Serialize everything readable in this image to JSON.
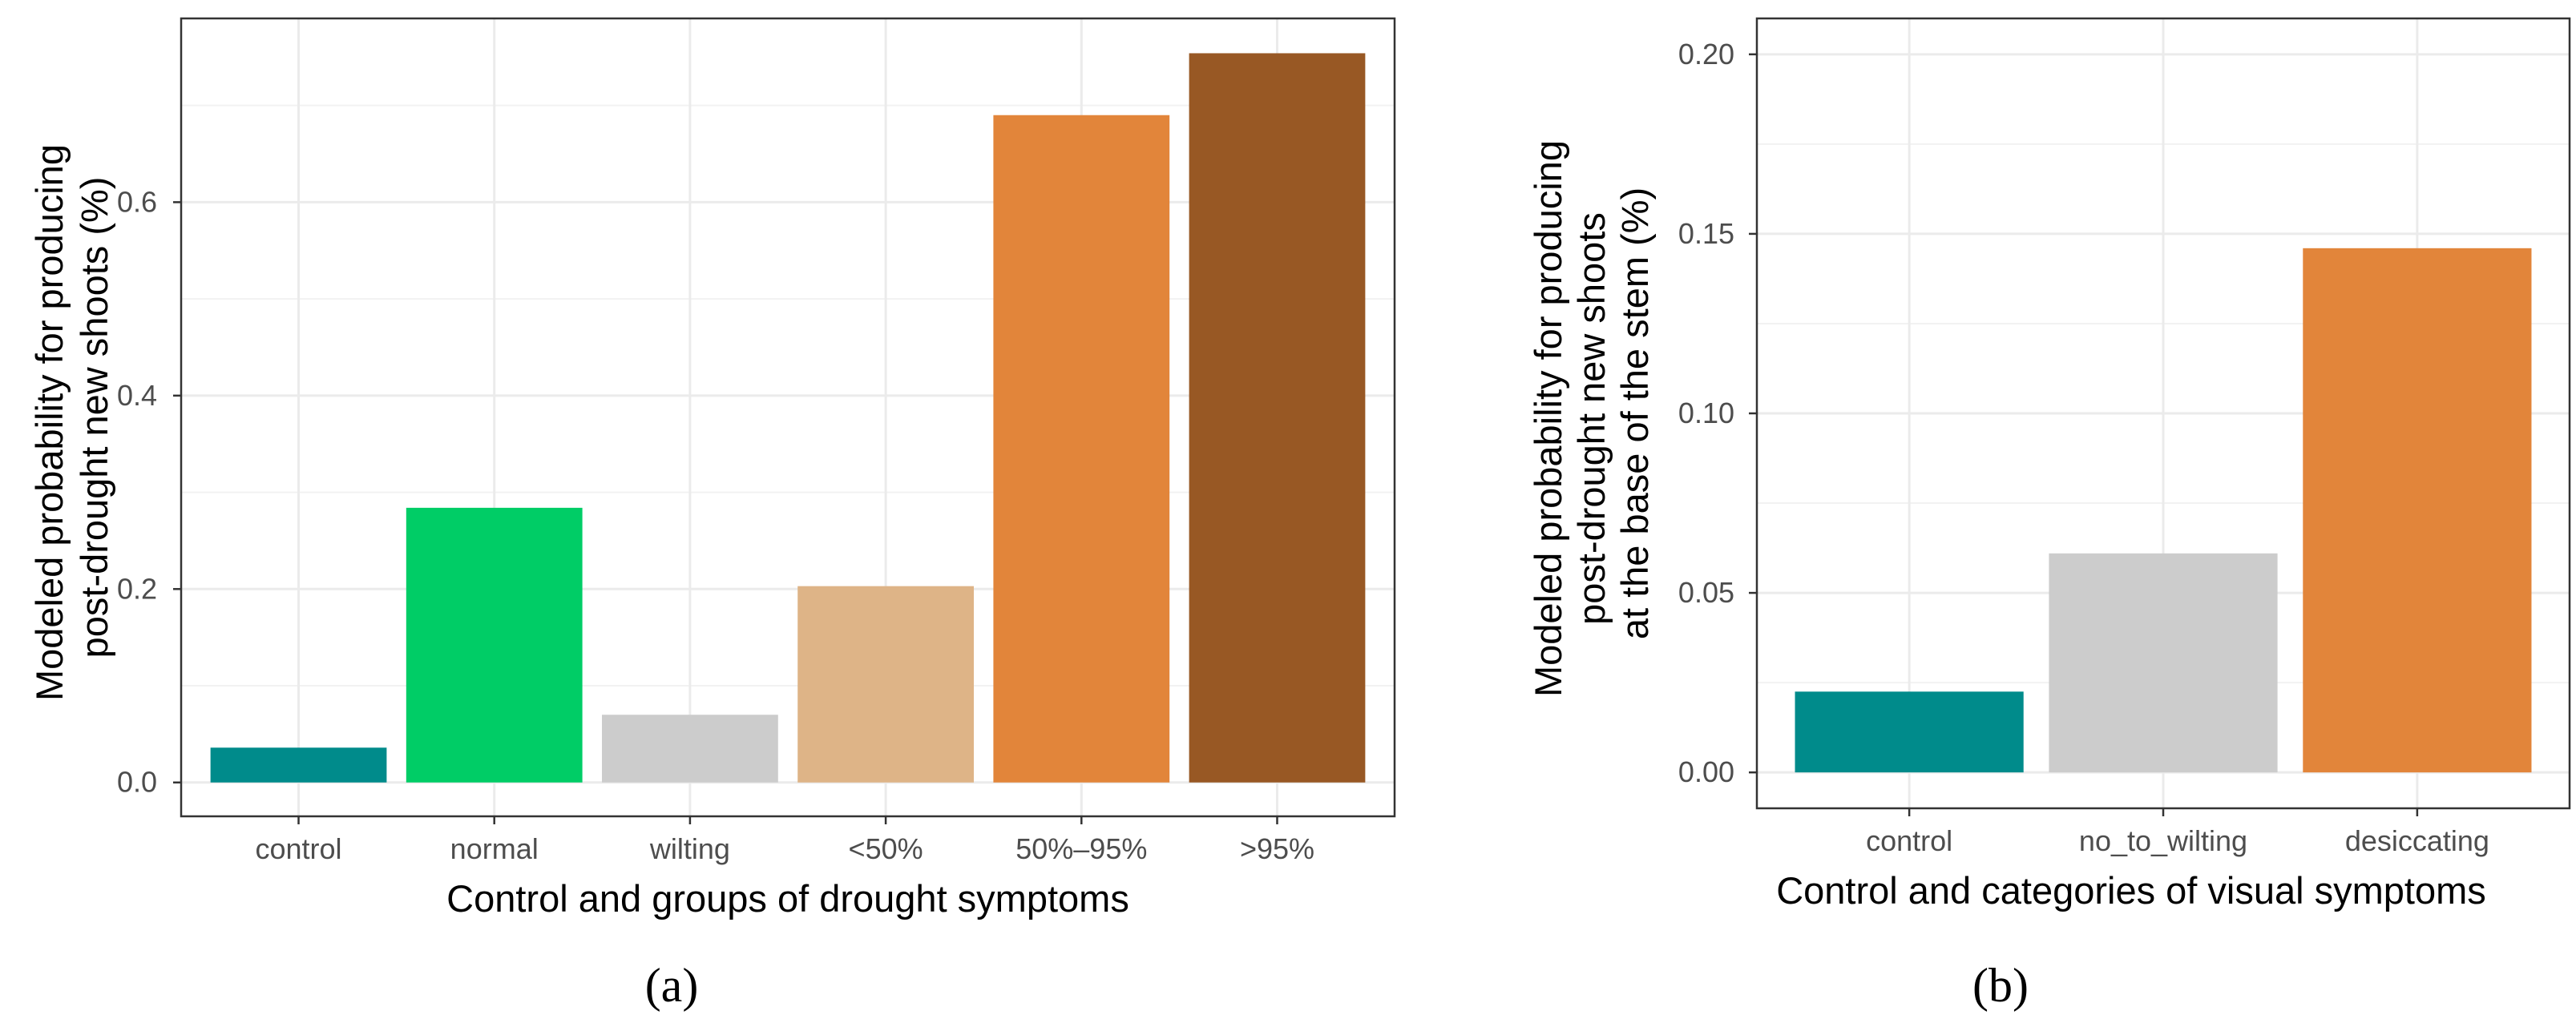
{
  "chart_data": [
    {
      "type": "bar",
      "panel": "(a)",
      "title": "",
      "categories": [
        "control",
        "normal",
        "wilting",
        "<50%",
        "50%–95%",
        ">95%"
      ],
      "values": [
        0.036,
        0.284,
        0.07,
        0.203,
        0.69,
        0.754
      ],
      "colors": [
        "#008b8b",
        "#00cd66",
        "#cccccc",
        "#deb487",
        "#e2853a",
        "#985824"
      ],
      "xlabel": "Control and groups of drought symptoms",
      "ylabel_lines": [
        "Modeled probability for producing",
        "post-drought new shoots (%)"
      ],
      "ylim": [
        -0.035,
        0.79
      ],
      "yticks": [
        0.0,
        0.2,
        0.4,
        0.6
      ],
      "ytick_labels": [
        "0.0",
        "0.2",
        "0.4",
        "0.6"
      ],
      "grid": true,
      "legend": "none"
    },
    {
      "type": "bar",
      "panel": "(b)",
      "title": "",
      "categories": [
        "control",
        "no_to_wilting",
        "desiccating"
      ],
      "values": [
        0.0225,
        0.061,
        0.146
      ],
      "colors": [
        "#008b8b",
        "#cccccc",
        "#e2853a"
      ],
      "xlabel": "Control and categories of visual symptoms",
      "ylabel_lines": [
        "Modeled probability for producing",
        "post-drought new shoots",
        "at the base of the stem (%)"
      ],
      "ylim": [
        -0.01,
        0.21
      ],
      "yticks": [
        0.0,
        0.05,
        0.1,
        0.15,
        0.2
      ],
      "ytick_labels": [
        "0.00",
        "0.05",
        "0.10",
        "0.15",
        "0.20"
      ],
      "grid": true,
      "legend": "none"
    }
  ]
}
